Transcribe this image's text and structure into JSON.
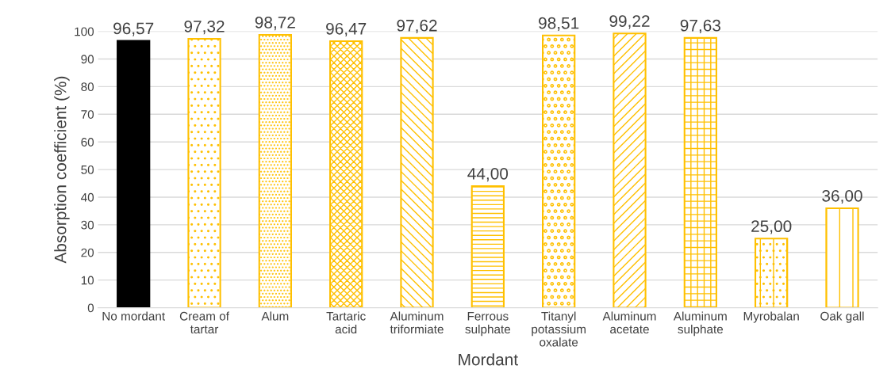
{
  "chart_data": {
    "type": "bar",
    "xlabel": "Mordant",
    "ylabel": "Absorption coefficient (%)",
    "categories": [
      "No mordant",
      "Cream of tartar",
      "Alum",
      "Tartaric acid",
      "Aluminum triformiate",
      "Ferrous sulphate",
      "Titanyl potassium oxalate",
      "Aluminum acetate",
      "Aluminum sulphate",
      "Myrobalan",
      "Oak gall"
    ],
    "values": [
      96.57,
      97.32,
      98.72,
      96.47,
      97.62,
      44.0,
      98.51,
      99.22,
      97.63,
      25.0,
      36.0
    ],
    "colors": [
      "#000000",
      "#ffc000",
      "#ffc000",
      "#ffc000",
      "#ffc000",
      "#ffc000",
      "#ffc000",
      "#ffc000",
      "#ffc000",
      "#ffc000",
      "#ffc000"
    ],
    "value_labels": [
      "96,57",
      "97,32",
      "98,72",
      "96,47",
      "97,62",
      "44,00",
      "98,51",
      "99,22",
      "97,63",
      "25,00",
      "36,00"
    ],
    "ylim": [
      0,
      100
    ],
    "yticks": [
      0,
      10,
      20,
      30,
      40,
      50,
      60,
      70,
      80,
      90,
      100
    ],
    "grid": "y"
  }
}
